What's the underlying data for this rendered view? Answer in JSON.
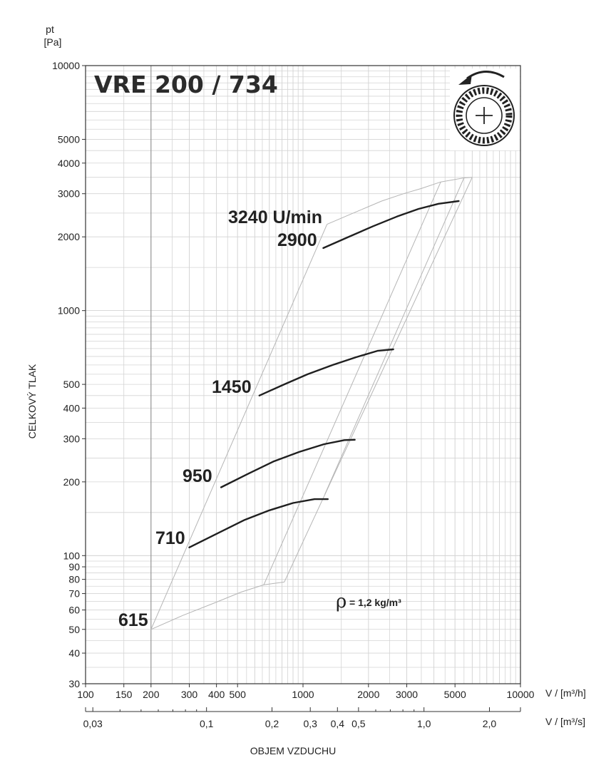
{
  "chart_data": {
    "type": "line",
    "title": "VRE 200 / 734",
    "y_unit_top": "pt",
    "y_unit_bottom": "[Pa]",
    "ylabel": "CELKOVÝ TLAK",
    "xlabel": "OBJEM VZDUCHU",
    "x_unit_label": "V / [m³/h]",
    "x2_unit_label": "V / [m³/s]",
    "x_scale": "log",
    "y_scale": "log",
    "xlim": [
      100,
      10000
    ],
    "ylim": [
      30,
      10000
    ],
    "x_ticks": [
      {
        "value": 100,
        "label": "100"
      },
      {
        "value": 150,
        "label": "150"
      },
      {
        "value": 200,
        "label": "200"
      },
      {
        "value": 300,
        "label": "300"
      },
      {
        "value": 400,
        "label": "400"
      },
      {
        "value": 500,
        "label": "500"
      },
      {
        "value": 1000,
        "label": "1000"
      },
      {
        "value": 2000,
        "label": "2000"
      },
      {
        "value": 3000,
        "label": "3000"
      },
      {
        "value": 5000,
        "label": "5000"
      },
      {
        "value": 10000,
        "label": "10000"
      }
    ],
    "x2_ticks": [
      {
        "value": 0.03,
        "label": "0,03"
      },
      {
        "value": 0.1,
        "label": "0,1"
      },
      {
        "value": 0.2,
        "label": "0,2"
      },
      {
        "value": 0.3,
        "label": "0,3"
      },
      {
        "value": 0.4,
        "label": "0,4"
      },
      {
        "value": 0.5,
        "label": "0,5"
      },
      {
        "value": 1.0,
        "label": "1,0"
      },
      {
        "value": 2.0,
        "label": "2,0"
      }
    ],
    "x2_minor": [
      0.04,
      0.05,
      0.06,
      0.07,
      0.08,
      0.09,
      0.6,
      0.7,
      0.8,
      0.9
    ],
    "y_ticks": [
      {
        "value": 30,
        "label": "30"
      },
      {
        "value": 40,
        "label": "40"
      },
      {
        "value": 50,
        "label": "50"
      },
      {
        "value": 60,
        "label": "60"
      },
      {
        "value": 70,
        "label": "70"
      },
      {
        "value": 80,
        "label": "80"
      },
      {
        "value": 90,
        "label": "90"
      },
      {
        "value": 100,
        "label": "100"
      },
      {
        "value": 200,
        "label": "200"
      },
      {
        "value": 300,
        "label": "300"
      },
      {
        "value": 400,
        "label": "400"
      },
      {
        "value": 500,
        "label": "500"
      },
      {
        "value": 1000,
        "label": "1000"
      },
      {
        "value": 2000,
        "label": "2000"
      },
      {
        "value": 3000,
        "label": "3000"
      },
      {
        "value": 4000,
        "label": "4000"
      },
      {
        "value": 5000,
        "label": "5000"
      },
      {
        "value": 10000,
        "label": "10000"
      }
    ],
    "grid": true,
    "density_label": "= 1,2 kg/m³",
    "density_symbol": "ρ",
    "speed_unit_label": "3240 U/min",
    "series": [
      {
        "name": "2900",
        "x": [
          1240,
          1600,
          2100,
          2700,
          3400,
          4200,
          5200
        ],
        "y": [
          1800,
          1990,
          2210,
          2420,
          2600,
          2730,
          2800
        ]
      },
      {
        "name": "1450",
        "x": [
          630,
          820,
          1050,
          1370,
          1750,
          2200,
          2600
        ],
        "y": [
          450,
          500,
          550,
          600,
          645,
          685,
          695
        ]
      },
      {
        "name": "950",
        "x": [
          420,
          560,
          730,
          960,
          1250,
          1550,
          1730
        ],
        "y": [
          190,
          216,
          242,
          265,
          285,
          296,
          297
        ]
      },
      {
        "name": "710",
        "x": [
          300,
          410,
          540,
          700,
          900,
          1130,
          1300
        ],
        "y": [
          108,
          124,
          140,
          153,
          164,
          170,
          170
        ]
      }
    ],
    "series_label_615": "615",
    "envelope": {
      "top": {
        "x": [
          1290,
          1700,
          2300,
          2900,
          3500,
          4300,
          5500,
          6000
        ],
        "y": [
          2250,
          2500,
          2800,
          3000,
          3150,
          3350,
          3480,
          3500
        ]
      },
      "bottom": {
        "x": [
          200,
          280,
          390,
          520,
          660,
          820
        ],
        "y": [
          50,
          57,
          64,
          71,
          76,
          78
        ]
      },
      "left_edge": {
        "x": [
          200,
          1290
        ],
        "y": [
          50,
          2250
        ]
      },
      "right_edge": {
        "x": [
          820,
          6000
        ],
        "y": [
          78,
          3500
        ]
      },
      "guide_a": {
        "x": [
          660,
          4300
        ],
        "y": [
          76,
          3350
        ]
      },
      "guide_b": {
        "x": [
          1260,
          5500
        ],
        "y": [
          178,
          3480
        ]
      }
    }
  }
}
